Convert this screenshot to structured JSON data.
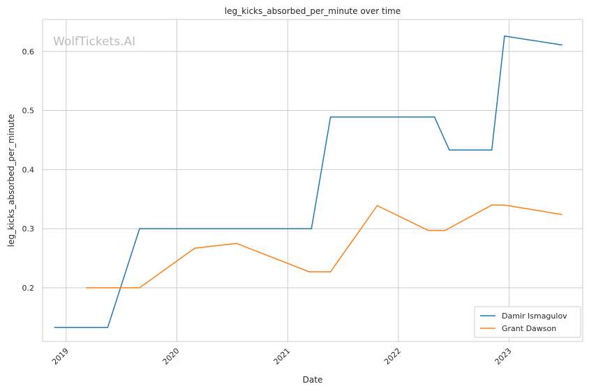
{
  "chart_data": {
    "type": "line",
    "title": "leg_kicks_absorbed_per_minute over time",
    "xlabel": "Date",
    "ylabel": "leg_kicks_absorbed_per_minute",
    "watermark": "WolfTickets.AI",
    "x_tick_labels": [
      "2019",
      "2020",
      "2021",
      "2022",
      "2023"
    ],
    "y_tick_labels": [
      "0.2",
      "0.3",
      "0.4",
      "0.5",
      "0.6"
    ],
    "xlim": [
      "2018-10-15",
      "2023-09-01"
    ],
    "ylim": [
      0.109,
      0.654
    ],
    "grid": true,
    "legend_position": "lower-right",
    "series": [
      {
        "name": "Damir Ismagulov",
        "color": "#1f77b4",
        "points": [
          [
            "2018-11-24",
            0.133
          ],
          [
            "2019-05-18",
            0.133
          ],
          [
            "2019-08-31",
            0.3
          ],
          [
            "2021-03-20",
            0.3
          ],
          [
            "2021-05-22",
            0.489
          ],
          [
            "2022-04-30",
            0.489
          ],
          [
            "2022-06-18",
            0.433
          ],
          [
            "2022-11-05",
            0.433
          ],
          [
            "2022-12-17",
            0.626
          ],
          [
            "2023-06-24",
            0.611
          ]
        ]
      },
      {
        "name": "Grant Dawson",
        "color": "#ff7f0e",
        "points": [
          [
            "2019-03-09",
            0.2
          ],
          [
            "2019-08-31",
            0.2
          ],
          [
            "2020-02-29",
            0.267
          ],
          [
            "2020-07-16",
            0.275
          ],
          [
            "2021-03-13",
            0.227
          ],
          [
            "2021-05-22",
            0.227
          ],
          [
            "2021-10-23",
            0.339
          ],
          [
            "2022-04-09",
            0.297
          ],
          [
            "2022-06-04",
            0.297
          ],
          [
            "2022-11-05",
            0.34
          ],
          [
            "2022-12-17",
            0.34
          ],
          [
            "2023-06-24",
            0.324
          ]
        ]
      }
    ]
  }
}
